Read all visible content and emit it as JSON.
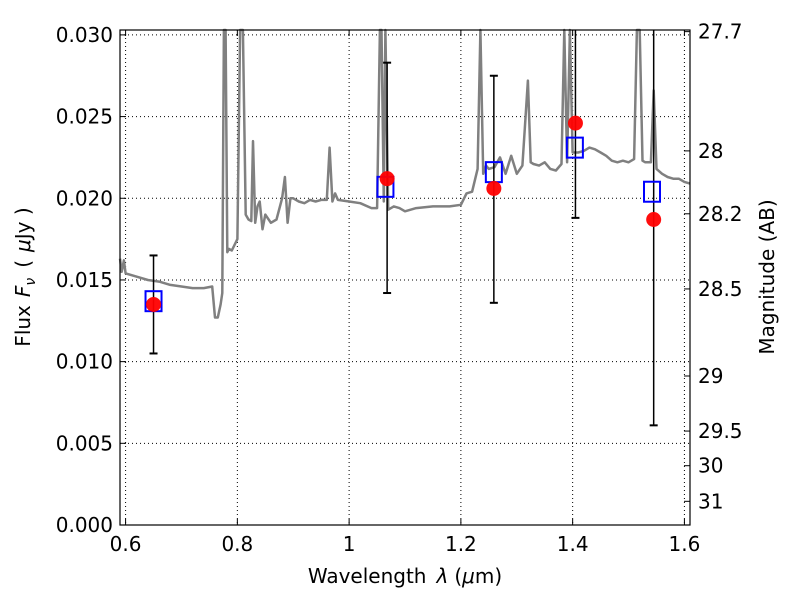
{
  "chart_data": {
    "type": "scatter",
    "xlabel": {
      "text": "Wavelength",
      "symbol": "λ",
      "unit_pre": "(",
      "unit_mu": "μ",
      "unit_post": "m)"
    },
    "ylabel": {
      "text": "Flux",
      "symbol": "F",
      "subscript": "ν",
      "unit_pre": "(",
      "unit_mu": "μ",
      "unit_post": "Jy )"
    },
    "y2label": "Magnitude (AB)",
    "xlim": [
      0.59,
      1.61
    ],
    "ylim": [
      0.0,
      0.0303
    ],
    "grid": true,
    "x_ticks": [
      {
        "value": 0.6,
        "label": "0.6"
      },
      {
        "value": 0.8,
        "label": "0.8"
      },
      {
        "value": 1.0,
        "label": "1"
      },
      {
        "value": 1.2,
        "label": "1.2"
      },
      {
        "value": 1.4,
        "label": "1.4"
      },
      {
        "value": 1.6,
        "label": "1.6"
      }
    ],
    "y_ticks": [
      {
        "value": 0.0,
        "label": "0.000"
      },
      {
        "value": 0.005,
        "label": "0.005"
      },
      {
        "value": 0.01,
        "label": "0.010"
      },
      {
        "value": 0.015,
        "label": "0.015"
      },
      {
        "value": 0.02,
        "label": "0.020"
      },
      {
        "value": 0.025,
        "label": "0.025"
      },
      {
        "value": 0.03,
        "label": "0.030"
      }
    ],
    "y2_ticks": [
      {
        "flux": 0.0302,
        "label": "27.7"
      },
      {
        "flux": 0.0229,
        "label": "28"
      },
      {
        "flux": 0.01905,
        "label": "28.2"
      },
      {
        "flux": 0.01445,
        "label": "28.5"
      },
      {
        "flux": 0.00912,
        "label": "29"
      },
      {
        "flux": 0.00575,
        "label": "29.5"
      },
      {
        "flux": 0.00363,
        "label": "30"
      },
      {
        "flux": 0.00145,
        "label": "31"
      }
    ],
    "series": [
      {
        "kind": "template",
        "color": "#808080",
        "x": [
          0.59,
          0.593,
          0.597,
          0.6,
          0.62,
          0.64,
          0.66,
          0.68,
          0.7,
          0.72,
          0.74,
          0.755,
          0.76,
          0.765,
          0.77,
          0.773,
          0.776,
          0.779,
          0.782,
          0.785,
          0.79,
          0.8,
          0.805,
          0.81,
          0.815,
          0.82,
          0.825,
          0.828,
          0.832,
          0.836,
          0.84,
          0.845,
          0.85,
          0.86,
          0.87,
          0.88,
          0.885,
          0.89,
          0.895,
          0.9,
          0.91,
          0.92,
          0.93,
          0.94,
          0.95,
          0.96,
          0.965,
          0.97,
          0.975,
          0.98,
          1.0,
          1.02,
          1.04,
          1.05,
          1.055,
          1.058,
          1.062,
          1.065,
          1.07,
          1.08,
          1.09,
          1.1,
          1.12,
          1.15,
          1.18,
          1.2,
          1.21,
          1.22,
          1.23,
          1.235,
          1.24,
          1.245,
          1.25,
          1.26,
          1.27,
          1.28,
          1.29,
          1.3,
          1.31,
          1.32,
          1.325,
          1.33,
          1.34,
          1.35,
          1.36,
          1.37,
          1.38,
          1.385,
          1.39,
          1.395,
          1.4,
          1.41,
          1.42,
          1.43,
          1.44,
          1.45,
          1.46,
          1.47,
          1.48,
          1.49,
          1.5,
          1.51,
          1.515,
          1.52,
          1.525,
          1.53,
          1.54,
          1.545,
          1.55,
          1.56,
          1.57,
          1.58,
          1.59,
          1.6,
          1.61
        ],
        "y": [
          0.0163,
          0.0155,
          0.0162,
          0.0154,
          0.0152,
          0.015,
          0.0149,
          0.0147,
          0.0146,
          0.0145,
          0.0145,
          0.0146,
          0.0127,
          0.0127,
          0.0135,
          0.0142,
          0.0303,
          0.0303,
          0.0167,
          0.0169,
          0.0168,
          0.0175,
          0.0303,
          0.0303,
          0.019,
          0.0187,
          0.0186,
          0.0235,
          0.0185,
          0.0195,
          0.0198,
          0.0181,
          0.019,
          0.0185,
          0.0187,
          0.02,
          0.0213,
          0.0185,
          0.02,
          0.02,
          0.0198,
          0.0197,
          0.0199,
          0.0198,
          0.0199,
          0.0199,
          0.0231,
          0.0198,
          0.0203,
          0.0199,
          0.0198,
          0.0197,
          0.0194,
          0.0194,
          0.0303,
          0.0303,
          0.0198,
          0.0303,
          0.0193,
          0.0195,
          0.0194,
          0.0192,
          0.0194,
          0.0195,
          0.0195,
          0.0196,
          0.0203,
          0.0204,
          0.0218,
          0.0303,
          0.0215,
          0.022,
          0.0218,
          0.0219,
          0.0225,
          0.0215,
          0.0226,
          0.0215,
          0.022,
          0.0272,
          0.0222,
          0.0221,
          0.022,
          0.0222,
          0.0218,
          0.0217,
          0.0221,
          0.0303,
          0.0222,
          0.0303,
          0.0228,
          0.0228,
          0.0229,
          0.0231,
          0.023,
          0.0228,
          0.0226,
          0.0223,
          0.0222,
          0.0223,
          0.0222,
          0.0224,
          0.0303,
          0.0303,
          0.0223,
          0.0222,
          0.0222,
          0.0266,
          0.0218,
          0.0215,
          0.0213,
          0.0212,
          0.0212,
          0.021,
          0.0209
        ]
      },
      {
        "kind": "observed",
        "color": "#ff0000",
        "errorbar_color": "#000000",
        "points": [
          {
            "x": 0.65,
            "y": 0.0135,
            "yerr_lo": 0.0105,
            "yerr_hi": 0.0165
          },
          {
            "x": 1.068,
            "y": 0.0212,
            "yerr_lo": 0.0142,
            "yerr_hi": 0.0283
          },
          {
            "x": 1.259,
            "y": 0.0206,
            "yerr_lo": 0.0136,
            "yerr_hi": 0.0275
          },
          {
            "x": 1.405,
            "y": 0.0246,
            "yerr_lo": 0.0188,
            "yerr_hi": 0.0303
          },
          {
            "x": 1.545,
            "y": 0.0187,
            "yerr_lo": 0.0061,
            "yerr_hi": 0.0303
          }
        ]
      },
      {
        "kind": "model_band",
        "color": "#0000ff",
        "points": [
          {
            "x": 0.65,
            "y": 0.0137
          },
          {
            "x": 1.065,
            "y": 0.0207
          },
          {
            "x": 1.259,
            "y": 0.0216
          },
          {
            "x": 1.404,
            "y": 0.0231
          },
          {
            "x": 1.542,
            "y": 0.0204
          }
        ]
      }
    ]
  }
}
